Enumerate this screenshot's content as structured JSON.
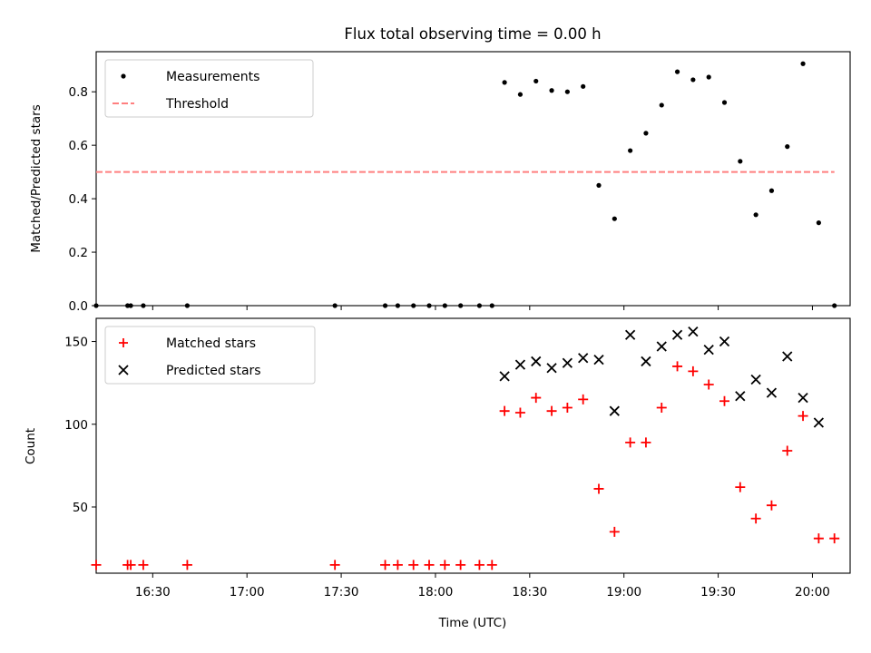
{
  "chart_data": [
    {
      "type": "scatter",
      "title": "Flux total observing time = 0.00 h",
      "ylabel": "Matched/Predicted stars",
      "xlabel": "",
      "xlim": [
        "16:12",
        "20:12"
      ],
      "ylim": [
        0,
        0.95
      ],
      "yticks": [
        "0.0",
        "0.2",
        "0.4",
        "0.6",
        "0.8"
      ],
      "xticks": [
        "16:30",
        "17:00",
        "17:30",
        "18:00",
        "18:30",
        "19:00",
        "19:30",
        "20:00"
      ],
      "legend_position": "upper-left",
      "legend": [
        "Measurements",
        "Threshold"
      ],
      "threshold": {
        "value": 0.5,
        "x_start": "16:12",
        "x_end": "20:07",
        "color": "#ff7f7f"
      },
      "series": [
        {
          "name": "Measurements",
          "color": "#000000",
          "marker": "dot",
          "points": [
            [
              "16:12",
              0
            ],
            [
              "16:22",
              0
            ],
            [
              "16:23",
              0
            ],
            [
              "16:27",
              0
            ],
            [
              "16:41",
              0
            ],
            [
              "17:28",
              0
            ],
            [
              "17:44",
              0
            ],
            [
              "17:48",
              0
            ],
            [
              "17:53",
              0
            ],
            [
              "17:58",
              0
            ],
            [
              "18:03",
              0
            ],
            [
              "18:08",
              0
            ],
            [
              "18:14",
              0
            ],
            [
              "18:18",
              0
            ],
            [
              "18:22",
              0.835
            ],
            [
              "18:27",
              0.79
            ],
            [
              "18:32",
              0.84
            ],
            [
              "18:37",
              0.805
            ],
            [
              "18:42",
              0.8
            ],
            [
              "18:47",
              0.82
            ],
            [
              "18:52",
              0.45
            ],
            [
              "18:57",
              0.325
            ],
            [
              "19:02",
              0.58
            ],
            [
              "19:07",
              0.645
            ],
            [
              "19:12",
              0.75
            ],
            [
              "19:17",
              0.875
            ],
            [
              "19:22",
              0.845
            ],
            [
              "19:27",
              0.855
            ],
            [
              "19:32",
              0.76
            ],
            [
              "19:37",
              0.54
            ],
            [
              "19:42",
              0.34
            ],
            [
              "19:47",
              0.43
            ],
            [
              "19:52",
              0.595
            ],
            [
              "19:57",
              0.905
            ],
            [
              "20:02",
              0.31
            ],
            [
              "20:07",
              0
            ]
          ]
        }
      ]
    },
    {
      "type": "scatter",
      "title": "",
      "ylabel": "Count",
      "xlabel": "Time (UTC)",
      "xlim": [
        "16:12",
        "20:12"
      ],
      "ylim": [
        10,
        164
      ],
      "yticks": [
        "50",
        "100",
        "150"
      ],
      "xticks": [
        "16:30",
        "17:00",
        "17:30",
        "18:00",
        "18:30",
        "19:00",
        "19:30",
        "20:00"
      ],
      "legend_position": "upper-left",
      "legend": [
        "Matched stars",
        "Predicted stars"
      ],
      "series": [
        {
          "name": "Matched stars",
          "color": "#ff0000",
          "marker": "plus",
          "points": [
            [
              "16:12",
              15
            ],
            [
              "16:22",
              15
            ],
            [
              "16:23",
              15
            ],
            [
              "16:27",
              15
            ],
            [
              "16:41",
              15
            ],
            [
              "17:28",
              15
            ],
            [
              "17:44",
              15
            ],
            [
              "17:48",
              15
            ],
            [
              "17:53",
              15
            ],
            [
              "17:58",
              15
            ],
            [
              "18:03",
              15
            ],
            [
              "18:08",
              15
            ],
            [
              "18:14",
              15
            ],
            [
              "18:18",
              15
            ],
            [
              "18:22",
              108
            ],
            [
              "18:27",
              107
            ],
            [
              "18:32",
              116
            ],
            [
              "18:37",
              108
            ],
            [
              "18:42",
              110
            ],
            [
              "18:47",
              115
            ],
            [
              "18:52",
              61
            ],
            [
              "18:57",
              35
            ],
            [
              "19:02",
              89
            ],
            [
              "19:07",
              89
            ],
            [
              "19:12",
              110
            ],
            [
              "19:17",
              135
            ],
            [
              "19:22",
              132
            ],
            [
              "19:27",
              124
            ],
            [
              "19:32",
              114
            ],
            [
              "19:37",
              62
            ],
            [
              "19:42",
              43
            ],
            [
              "19:47",
              51
            ],
            [
              "19:52",
              84
            ],
            [
              "19:57",
              105
            ],
            [
              "20:02",
              31
            ],
            [
              "20:07",
              31
            ]
          ]
        },
        {
          "name": "Predicted stars",
          "color": "#000000",
          "marker": "x",
          "points": [
            [
              "18:22",
              129
            ],
            [
              "18:27",
              136
            ],
            [
              "18:32",
              138
            ],
            [
              "18:37",
              134
            ],
            [
              "18:42",
              137
            ],
            [
              "18:47",
              140
            ],
            [
              "18:52",
              139
            ],
            [
              "18:57",
              108
            ],
            [
              "19:02",
              154
            ],
            [
              "19:07",
              138
            ],
            [
              "19:12",
              147
            ],
            [
              "19:17",
              154
            ],
            [
              "19:22",
              156
            ],
            [
              "19:27",
              145
            ],
            [
              "19:32",
              150
            ],
            [
              "19:37",
              117
            ],
            [
              "19:42",
              127
            ],
            [
              "19:47",
              119
            ],
            [
              "19:52",
              141
            ],
            [
              "19:57",
              116
            ],
            [
              "20:02",
              101
            ]
          ]
        }
      ]
    }
  ]
}
